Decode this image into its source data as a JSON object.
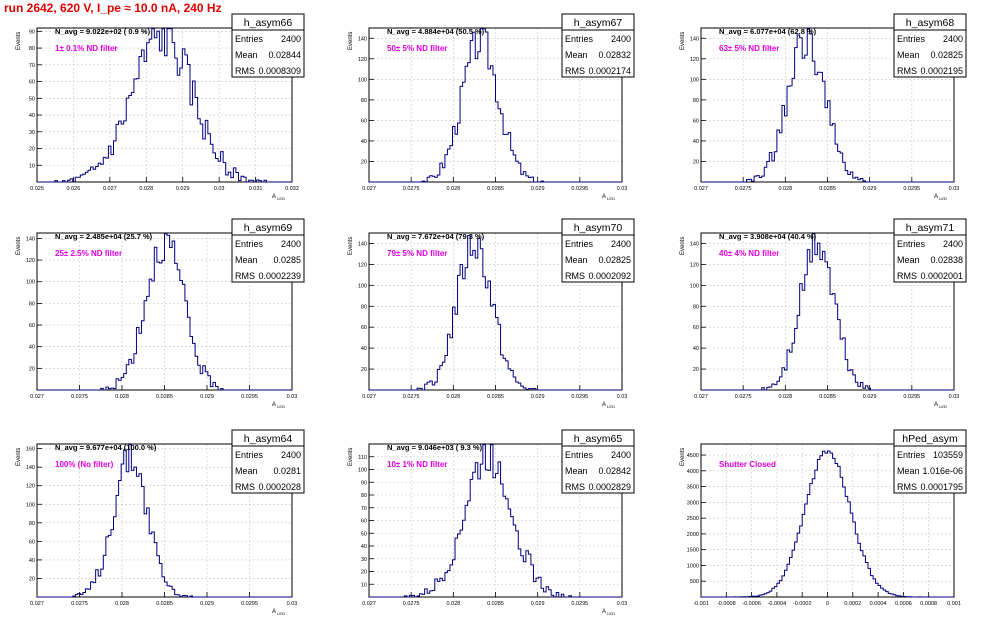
{
  "header": {
    "run_title": "run 2642,   620 V, I_pe ≈ 10.0 nA, 240 Hz"
  },
  "colors": {
    "title": "#e00000",
    "hist_line": "#000080",
    "annotation": "#e000e0",
    "grid": "#c8c8c8",
    "axis": "#000000"
  },
  "chart_data": [
    {
      "type": "histogram",
      "name": "h_asym66",
      "navg": "N_avg = 9.022e+02 ( 0.9 %)",
      "filter": "1± 0.1% ND filter",
      "stats": [
        [
          "Entries",
          "2400"
        ],
        [
          "Mean",
          "0.02844"
        ],
        [
          "RMS",
          "0.0008309"
        ]
      ],
      "xlabel": "A_{LED}",
      "ylabel": "Events",
      "xlim": [
        0.025,
        0.032
      ],
      "ylim": [
        0,
        92
      ],
      "xticks": [
        "0.025",
        "0.026",
        "0.027",
        "0.028",
        "0.029",
        "0.03",
        "0.031",
        "0.032"
      ],
      "yticks": [
        10,
        20,
        30,
        40,
        50,
        60,
        70,
        80,
        90
      ],
      "gen": {
        "mean": 0.02844,
        "sigma": 0.0008309,
        "peak": 87,
        "nbins": 100,
        "seed": 66
      }
    },
    {
      "type": "histogram",
      "name": "h_asym67",
      "navg": "N_avg = 4.884e+04 (50.5 %)",
      "filter": "50± 5% ND filter",
      "stats": [
        [
          "Entries",
          "2400"
        ],
        [
          "Mean",
          "0.02832"
        ],
        [
          "RMS",
          "0.0002174"
        ]
      ],
      "xlabel": "A_{LED}",
      "ylabel": "Events",
      "xlim": [
        0.027,
        0.03
      ],
      "ylim": [
        0,
        150
      ],
      "xticks": [
        "0.027",
        "0.0275",
        "0.028",
        "0.0285",
        "0.029",
        "0.0295",
        "0.03"
      ],
      "yticks": [
        20,
        40,
        60,
        80,
        100,
        120,
        140
      ],
      "gen": {
        "mean": 0.02832,
        "sigma": 0.0002174,
        "peak": 138,
        "nbins": 100,
        "seed": 67
      }
    },
    {
      "type": "histogram",
      "name": "h_asym68",
      "navg": "N_avg = 6.077e+04 (62.8 %)",
      "filter": "63± 5% ND filter",
      "stats": [
        [
          "Entries",
          "2400"
        ],
        [
          "Mean",
          "0.02825"
        ],
        [
          "RMS",
          "0.0002195"
        ]
      ],
      "xlabel": "A_{LED}",
      "ylabel": "Events",
      "xlim": [
        0.027,
        0.03
      ],
      "ylim": [
        0,
        150
      ],
      "xticks": [
        "0.027",
        "0.0275",
        "0.028",
        "0.0285",
        "0.029",
        "0.0295",
        "0.03"
      ],
      "yticks": [
        20,
        40,
        60,
        80,
        100,
        120,
        140
      ],
      "gen": {
        "mean": 0.02825,
        "sigma": 0.0002195,
        "peak": 140,
        "nbins": 100,
        "seed": 68
      }
    },
    {
      "type": "histogram",
      "name": "h_asym69",
      "navg": "N_avg = 2.485e+04 (25.7 %)",
      "filter": "25± 2.5% ND filter",
      "stats": [
        [
          "Entries",
          "2400"
        ],
        [
          "Mean",
          "0.0285"
        ],
        [
          "RMS",
          "0.0002239"
        ]
      ],
      "xlabel": "A_{LED}",
      "ylabel": "Events",
      "xlim": [
        0.027,
        0.03
      ],
      "ylim": [
        0,
        145
      ],
      "xticks": [
        "0.027",
        "0.0275",
        "0.028",
        "0.0285",
        "0.029",
        "0.0295",
        "0.03"
      ],
      "yticks": [
        20,
        40,
        60,
        80,
        100,
        120,
        140
      ],
      "gen": {
        "mean": 0.0285,
        "sigma": 0.0002239,
        "peak": 138,
        "nbins": 100,
        "seed": 69
      }
    },
    {
      "type": "histogram",
      "name": "h_asym70",
      "navg": "N_avg = 7.672e+04 (79.3 %)",
      "filter": "79± 5% ND filter",
      "stats": [
        [
          "Entries",
          "2400"
        ],
        [
          "Mean",
          "0.02825"
        ],
        [
          "RMS",
          "0.0002092"
        ]
      ],
      "xlabel": "A_{LED}",
      "ylabel": "Events",
      "xlim": [
        0.027,
        0.03
      ],
      "ylim": [
        0,
        150
      ],
      "xticks": [
        "0.027",
        "0.0275",
        "0.028",
        "0.0285",
        "0.029",
        "0.0295",
        "0.03"
      ],
      "yticks": [
        20,
        40,
        60,
        80,
        100,
        120,
        140
      ],
      "gen": {
        "mean": 0.02825,
        "sigma": 0.0002092,
        "peak": 140,
        "nbins": 100,
        "seed": 70
      }
    },
    {
      "type": "histogram",
      "name": "h_asym71",
      "navg": "N_avg = 3.908e+04 (40.4 %)",
      "filter": "40± 4% ND filter",
      "stats": [
        [
          "Entries",
          "2400"
        ],
        [
          "Mean",
          "0.02838"
        ],
        [
          "RMS",
          "0.0002001"
        ]
      ],
      "xlabel": "A_{LED}",
      "ylabel": "Events",
      "xlim": [
        0.027,
        0.03
      ],
      "ylim": [
        0,
        150
      ],
      "xticks": [
        "0.027",
        "0.0275",
        "0.028",
        "0.0285",
        "0.029",
        "0.0295",
        "0.03"
      ],
      "yticks": [
        20,
        40,
        60,
        80,
        100,
        120,
        140
      ],
      "gen": {
        "mean": 0.02838,
        "sigma": 0.0002001,
        "peak": 140,
        "nbins": 100,
        "seed": 71
      }
    },
    {
      "type": "histogram",
      "name": "h_asym64",
      "navg": "N_avg = 9.677e+04 (100.0 %)",
      "filter": "100% (No filter)",
      "stats": [
        [
          "Entries",
          "2400"
        ],
        [
          "Mean",
          "0.0281"
        ],
        [
          "RMS",
          "0.0002028"
        ]
      ],
      "xlabel": "A_{LED}",
      "ylabel": "Events",
      "xlim": [
        0.027,
        0.03
      ],
      "ylim": [
        0,
        165
      ],
      "xticks": [
        "0.027",
        "0.0275",
        "0.028",
        "0.0285",
        "0.029",
        "0.0295",
        "0.03"
      ],
      "yticks": [
        20,
        40,
        60,
        80,
        100,
        120,
        140,
        160
      ],
      "gen": {
        "mean": 0.0281,
        "sigma": 0.0002028,
        "peak": 152,
        "nbins": 100,
        "seed": 64
      }
    },
    {
      "type": "histogram",
      "name": "h_asym65",
      "navg": "N_avg = 9.046e+03 ( 9.3 %)",
      "filter": "10± 1% ND filter",
      "stats": [
        [
          "Entries",
          "2400"
        ],
        [
          "Mean",
          "0.02842"
        ],
        [
          "RMS",
          "0.0002829"
        ]
      ],
      "xlabel": "A_{LED}",
      "ylabel": "Events",
      "xlim": [
        0.027,
        0.03
      ],
      "ylim": [
        0,
        120
      ],
      "xticks": [
        "0.027",
        "0.0275",
        "0.028",
        "0.0285",
        "0.029",
        "0.0295",
        "0.03"
      ],
      "yticks": [
        10,
        20,
        30,
        40,
        50,
        60,
        70,
        80,
        90,
        100,
        110
      ],
      "gen": {
        "mean": 0.02842,
        "sigma": 0.0002829,
        "peak": 112,
        "nbins": 100,
        "seed": 65
      }
    },
    {
      "type": "histogram",
      "name": "hPed_asym",
      "navg": "",
      "filter": "Shutter Closed",
      "stats": [
        [
          "Entries",
          "103559"
        ],
        [
          "Mean",
          "1.016e-06"
        ],
        [
          "RMS",
          "0.0001795"
        ]
      ],
      "xlabel": "",
      "ylabel": "Events",
      "xlim": [
        -0.001,
        0.001
      ],
      "ylim": [
        0,
        4850
      ],
      "xticks": [
        "-0.001",
        "-0.0008",
        "-0.0006",
        "-0.0004",
        "-0.0002",
        "0",
        "0.0002",
        "0.0004",
        "0.0006",
        "0.0008",
        "0.001"
      ],
      "yticks": [
        500,
        1000,
        1500,
        2000,
        2500,
        3000,
        3500,
        4000,
        4500
      ],
      "gen": {
        "mean": 1.016e-06,
        "sigma": 0.0001795,
        "peak": 4620,
        "nbins": 100,
        "seed": 72
      }
    }
  ]
}
